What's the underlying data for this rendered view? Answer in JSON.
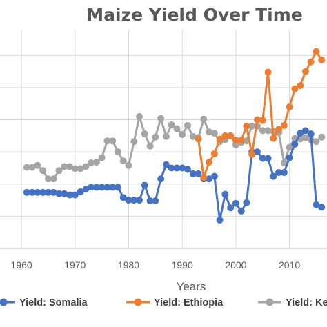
{
  "chart_data": {
    "type": "line",
    "title": "Maize Yield Over Time",
    "xlabel": "Years",
    "ylabel": "",
    "xlim": [
      1956,
      2017
    ],
    "ylim": [
      0,
      3.4
    ],
    "xticks": [
      1960,
      1970,
      1980,
      1990,
      2000,
      2010
    ],
    "grid": true,
    "legend": "bottom",
    "series": [
      {
        "name": "Yield: Somalia",
        "color": "#4472C4",
        "x": [
          1961,
          1962,
          1963,
          1964,
          1965,
          1966,
          1967,
          1968,
          1969,
          1970,
          1971,
          1972,
          1973,
          1974,
          1975,
          1976,
          1977,
          1978,
          1979,
          1980,
          1981,
          1982,
          1983,
          1984,
          1985,
          1986,
          1987,
          1988,
          1989,
          1990,
          1991,
          1992,
          1993,
          1994,
          1995,
          1996,
          1997,
          1998,
          1999,
          2000,
          2001,
          2002,
          2003,
          2004,
          2005,
          2006,
          2007,
          2008,
          2009,
          2010,
          2011,
          2012,
          2013,
          2014,
          2015,
          2016
        ],
        "values": [
          0.87,
          0.87,
          0.87,
          0.87,
          0.87,
          0.87,
          0.85,
          0.85,
          0.83,
          0.83,
          0.88,
          0.92,
          0.95,
          0.95,
          0.95,
          0.95,
          0.95,
          0.95,
          0.79,
          0.75,
          0.75,
          0.75,
          0.98,
          0.74,
          0.74,
          1.08,
          1.3,
          1.25,
          1.25,
          1.25,
          1.23,
          1.16,
          1.16,
          1.08,
          1.08,
          1.12,
          0.44,
          0.84,
          0.63,
          0.7,
          0.58,
          0.71,
          1.5,
          1.5,
          1.4,
          1.4,
          1.12,
          1.18,
          1.18,
          1.41,
          1.62,
          1.79,
          1.83,
          1.78,
          0.68,
          0.64
        ]
      },
      {
        "name": "Yield: Ethiopia",
        "color": "#ED7D31",
        "x": [
          1993,
          1994,
          1995,
          1996,
          1997,
          1998,
          1999,
          2000,
          2001,
          2002,
          2003,
          2004,
          2005,
          2006,
          2007,
          2008,
          2009,
          2010,
          2011,
          2012,
          2013,
          2014,
          2015,
          2016
        ],
        "values": [
          1.7,
          1.1,
          1.34,
          1.47,
          1.7,
          1.75,
          1.75,
          1.68,
          1.68,
          1.9,
          1.46,
          2.0,
          1.99,
          2.74,
          1.71,
          1.85,
          1.91,
          2.2,
          2.48,
          2.53,
          2.75,
          2.9,
          3.06,
          2.93
        ]
      },
      {
        "name": "Yield: Kenya",
        "color": "#A5A5A5",
        "x": [
          1961,
          1962,
          1963,
          1964,
          1965,
          1966,
          1967,
          1968,
          1969,
          1970,
          1971,
          1972,
          1973,
          1974,
          1975,
          1976,
          1977,
          1978,
          1979,
          1980,
          1981,
          1982,
          1983,
          1984,
          1985,
          1986,
          1987,
          1988,
          1989,
          1990,
          1991,
          1992,
          1993,
          1994,
          1995,
          1996,
          1997,
          1998,
          1999,
          2000,
          2001,
          2002,
          2003,
          2004,
          2005,
          2006,
          2007,
          2008,
          2009,
          2010,
          2011,
          2012,
          2013,
          2014,
          2015,
          2016
        ],
        "values": [
          1.26,
          1.26,
          1.29,
          1.21,
          1.08,
          1.08,
          1.21,
          1.27,
          1.27,
          1.24,
          1.24,
          1.27,
          1.33,
          1.34,
          1.41,
          1.67,
          1.67,
          1.5,
          1.36,
          1.29,
          1.66,
          2.05,
          1.78,
          1.59,
          1.73,
          2.02,
          1.74,
          1.92,
          1.86,
          1.77,
          1.91,
          1.74,
          1.72,
          2.01,
          1.81,
          1.79,
          1.66,
          1.69,
          1.75,
          1.61,
          1.65,
          1.67,
          1.9,
          1.9,
          1.83,
          1.83,
          1.82,
          1.8,
          1.33,
          1.57,
          1.71,
          1.7,
          1.72,
          1.69,
          1.66,
          1.73
        ]
      }
    ]
  }
}
